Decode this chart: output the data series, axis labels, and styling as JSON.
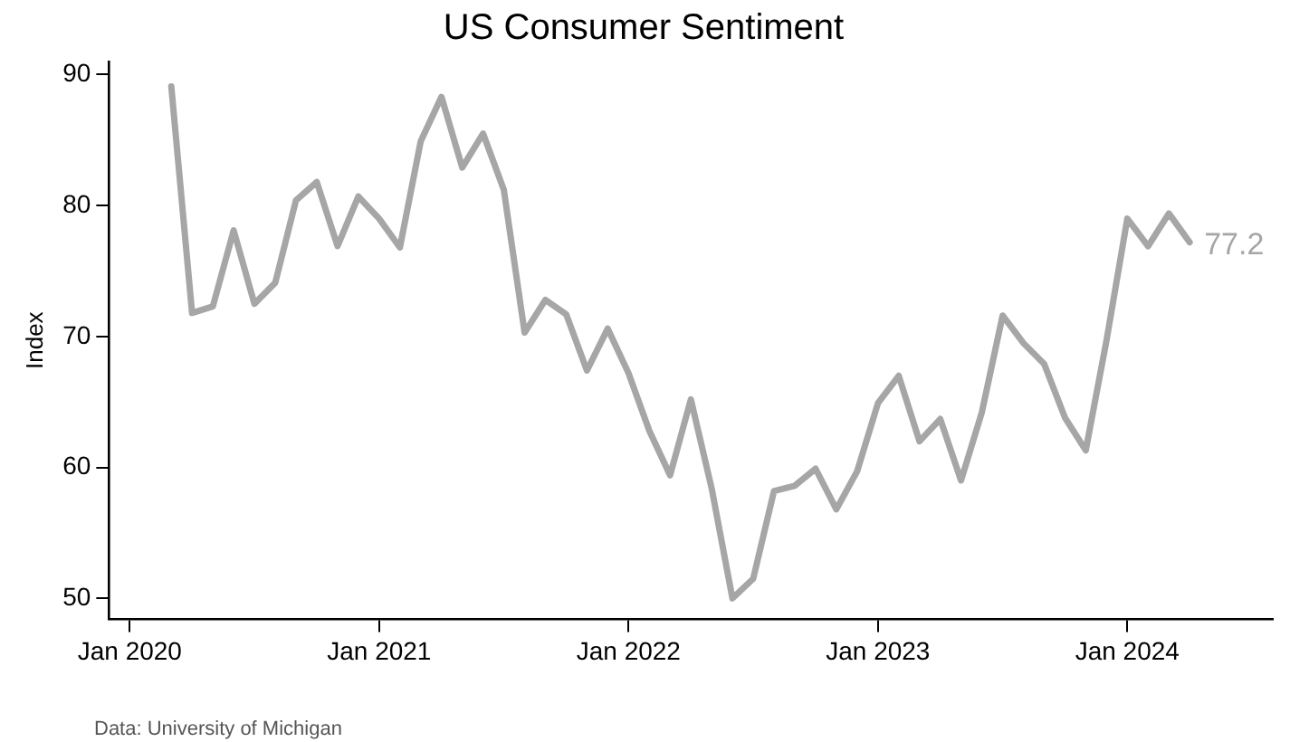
{
  "chart_data": {
    "type": "line",
    "title": "US Consumer Sentiment",
    "ylabel": "Index",
    "x": [
      "2020-03",
      "2020-04",
      "2020-05",
      "2020-06",
      "2020-07",
      "2020-08",
      "2020-09",
      "2020-10",
      "2020-11",
      "2020-12",
      "2021-01",
      "2021-02",
      "2021-03",
      "2021-04",
      "2021-05",
      "2021-06",
      "2021-07",
      "2021-08",
      "2021-09",
      "2021-10",
      "2021-11",
      "2021-12",
      "2022-01",
      "2022-02",
      "2022-03",
      "2022-04",
      "2022-05",
      "2022-06",
      "2022-07",
      "2022-08",
      "2022-09",
      "2022-10",
      "2022-11",
      "2022-12",
      "2023-01",
      "2023-02",
      "2023-03",
      "2023-04",
      "2023-05",
      "2023-06",
      "2023-07",
      "2023-08",
      "2023-09",
      "2023-10",
      "2023-11",
      "2023-12",
      "2024-01",
      "2024-02",
      "2024-03",
      "2024-04"
    ],
    "series": [
      {
        "color": "#a6a6a6",
        "values": [
          89.1,
          71.8,
          72.3,
          78.1,
          72.5,
          74.1,
          80.4,
          81.8,
          76.9,
          80.7,
          79.0,
          76.8,
          84.9,
          88.3,
          82.9,
          85.5,
          81.2,
          70.3,
          72.8,
          71.7,
          67.4,
          70.6,
          67.2,
          62.8,
          59.4,
          65.2,
          58.4,
          50.0,
          51.5,
          58.2,
          58.6,
          59.9,
          56.8,
          59.7,
          64.9,
          67.0,
          62.0,
          63.7,
          59.0,
          64.2,
          71.6,
          69.5,
          67.9,
          63.8,
          61.3,
          69.7,
          79.0,
          76.9,
          79.4,
          77.2
        ],
        "value_labels": [
          null,
          null,
          null,
          null,
          null,
          null,
          null,
          null,
          null,
          null,
          null,
          null,
          null,
          null,
          null,
          null,
          null,
          null,
          null,
          null,
          null,
          null,
          null,
          null,
          null,
          null,
          null,
          null,
          null,
          null,
          null,
          null,
          null,
          null,
          null,
          null,
          null,
          null,
          null,
          null,
          null,
          null,
          null,
          null,
          null,
          null,
          null,
          null,
          null,
          "77.2"
        ]
      }
    ],
    "xlim": [
      "2019-12",
      "2024-08"
    ],
    "xticks": [
      {
        "value": "2020-01",
        "label": "Jan 2020"
      },
      {
        "value": "2021-01",
        "label": "Jan 2021"
      },
      {
        "value": "2022-01",
        "label": "Jan 2022"
      },
      {
        "value": "2023-01",
        "label": "Jan 2023"
      },
      {
        "value": "2024-01",
        "label": "Jan 2024"
      }
    ],
    "ylim": [
      48.4,
      91
    ],
    "yticks": [
      50,
      60,
      70,
      80,
      90
    ],
    "grid": false,
    "legend": false,
    "marker": "none",
    "line_style": "solid",
    "annotations": [
      "Data: University of Michigan"
    ]
  }
}
